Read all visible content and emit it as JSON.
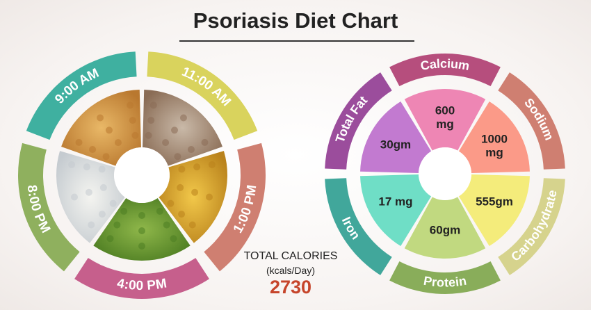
{
  "title": "Psoriasis Diet Chart",
  "total": {
    "label": "TOTAL CALORIES",
    "unit": "(kcals/Day)",
    "value": "2730"
  },
  "meal_wheel": {
    "times": [
      {
        "label": "9:00 AM",
        "color": "#3fb0a0"
      },
      {
        "label": "11:00 AM",
        "color": "#d9d35d"
      },
      {
        "label": "1:00 PM",
        "color": "#cf7f71"
      },
      {
        "label": "4:00 PM",
        "color": "#c65f8c"
      },
      {
        "label": "8:00 PM",
        "color": "#8fb05e"
      }
    ],
    "foods": [
      {
        "icon": "omelette-icon"
      },
      {
        "icon": "cherries-icon"
      },
      {
        "icon": "lentil-soup-icon"
      },
      {
        "icon": "brussels-sprouts-icon"
      },
      {
        "icon": "rice-bowl-icon"
      }
    ]
  },
  "nutrient_wheel": {
    "nutrients": [
      {
        "name": "Total Fat",
        "amount": "30gm",
        "band_color": "#9b4d9c",
        "wedge_color": "#c27ad0"
      },
      {
        "name": "Calcium",
        "amount": "600 mg",
        "band_color": "#b64e7d",
        "wedge_color": "#ee86b4"
      },
      {
        "name": "Sodium",
        "amount": "1000 mg",
        "band_color": "#cf7f71",
        "wedge_color": "#fb9a88"
      },
      {
        "name": "Carbohydrate",
        "amount": "555gm",
        "band_color": "#d6d38d",
        "wedge_color": "#f4ec7b"
      },
      {
        "name": "Protein",
        "amount": "60gm",
        "band_color": "#89ad5a",
        "wedge_color": "#c1d980"
      },
      {
        "name": "Iron",
        "amount": "17 mg",
        "band_color": "#41a79b",
        "wedge_color": "#6fdec6"
      }
    ]
  }
}
